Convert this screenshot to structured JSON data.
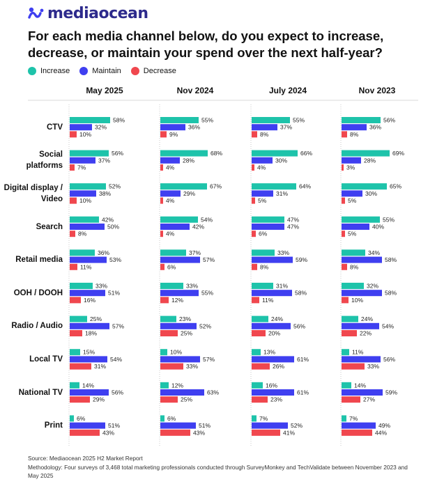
{
  "brand": {
    "name": "mediaocean",
    "logo_icon": "mediaocean-logo-icon"
  },
  "title": "For each media channel below, do you expect to increase, decrease, or maintain your spend over the next half-year?",
  "legend": [
    {
      "label": "Increase",
      "color": "#1ec3aa"
    },
    {
      "label": "Maintain",
      "color": "#3f3ff0"
    },
    {
      "label": "Decrease",
      "color": "#f0474e"
    }
  ],
  "chart_data": {
    "type": "bar",
    "orientation": "horizontal",
    "panels": [
      "May 2025",
      "Nov 2024",
      "July 2024",
      "Nov 2023"
    ],
    "categories": [
      "CTV",
      "Social platforms",
      "Digital display / Video",
      "Search",
      "Retail media",
      "OOH / DOOH",
      "Radio / Audio",
      "Local TV",
      "National TV",
      "Print"
    ],
    "category_lines": [
      [
        "CTV"
      ],
      [
        "Social",
        "platforms"
      ],
      [
        "Digital display /",
        "Video"
      ],
      [
        "Search"
      ],
      [
        "Retail media"
      ],
      [
        "OOH / DOOH"
      ],
      [
        "Radio / Audio"
      ],
      [
        "Local TV"
      ],
      [
        "National TV"
      ],
      [
        "Print"
      ]
    ],
    "series_names": [
      "Increase",
      "Maintain",
      "Decrease"
    ],
    "unit": "%",
    "xlim": [
      0,
      100
    ],
    "values": {
      "May 2025": {
        "Increase": [
          58,
          56,
          52,
          42,
          36,
          33,
          25,
          15,
          14,
          6
        ],
        "Maintain": [
          32,
          37,
          38,
          50,
          53,
          51,
          57,
          54,
          56,
          51
        ],
        "Decrease": [
          10,
          7,
          10,
          8,
          11,
          16,
          18,
          31,
          29,
          43
        ]
      },
      "Nov 2024": {
        "Increase": [
          55,
          68,
          67,
          54,
          37,
          33,
          23,
          10,
          12,
          6
        ],
        "Maintain": [
          36,
          28,
          29,
          42,
          57,
          55,
          52,
          57,
          63,
          51
        ],
        "Decrease": [
          9,
          4,
          4,
          4,
          6,
          12,
          25,
          33,
          25,
          43
        ]
      },
      "July 2024": {
        "Increase": [
          55,
          66,
          64,
          47,
          33,
          31,
          24,
          13,
          16,
          7
        ],
        "Maintain": [
          37,
          30,
          31,
          47,
          59,
          58,
          56,
          61,
          61,
          52
        ],
        "Decrease": [
          8,
          4,
          5,
          6,
          8,
          11,
          20,
          26,
          23,
          41
        ]
      },
      "Nov 2023": {
        "Increase": [
          56,
          69,
          65,
          55,
          34,
          32,
          24,
          11,
          14,
          7
        ],
        "Maintain": [
          36,
          28,
          30,
          40,
          58,
          58,
          54,
          56,
          59,
          49
        ],
        "Decrease": [
          8,
          3,
          5,
          5,
          8,
          10,
          22,
          33,
          27,
          44
        ]
      }
    }
  },
  "footer": {
    "source": "Source: Mediaocean 2025 H2 Market Report",
    "methodology": "Methodology: Four surveys of 3,468 total marketing professionals conducted through SurveyMonkey and TechValidate between November 2023 and May 2025"
  }
}
